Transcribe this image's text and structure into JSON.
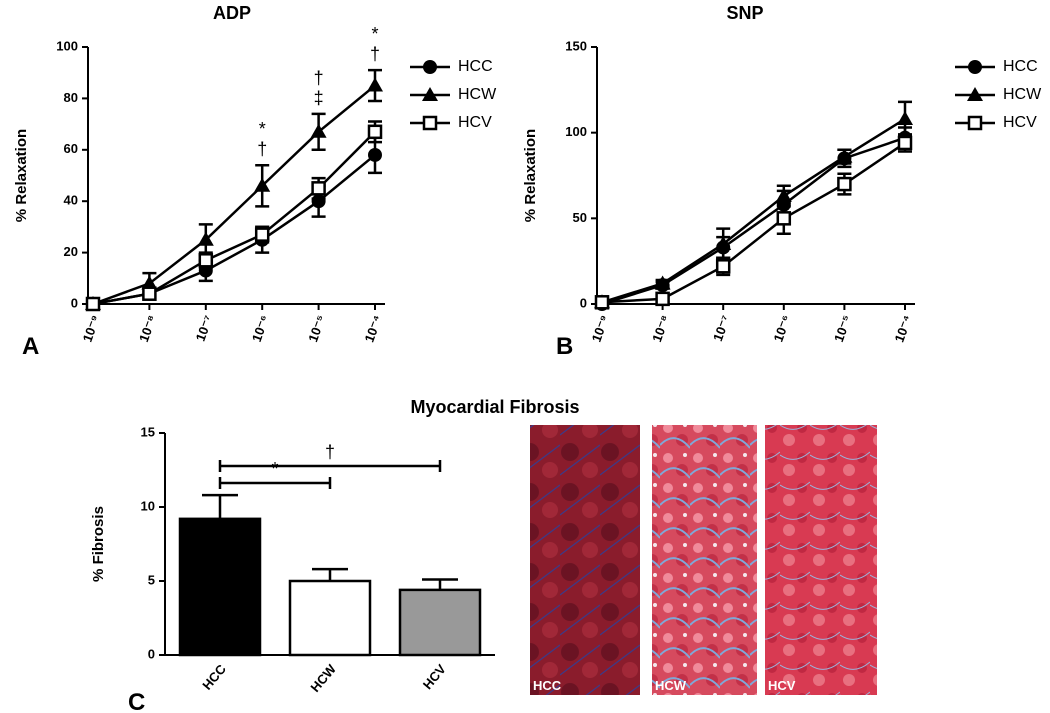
{
  "chart_data": [
    {
      "type": "line",
      "panel_label": "A",
      "title": "ADP",
      "y_label": "% Relaxation",
      "categories": [
        "10⁻⁹",
        "10⁻⁸",
        "10⁻⁷",
        "10⁻⁶",
        "10⁻⁵",
        "10⁻⁴"
      ],
      "ylim": [
        0,
        100
      ],
      "yticks": [
        0,
        20,
        40,
        60,
        80,
        100
      ],
      "legend": "right",
      "series": [
        {
          "name": "HCC",
          "marker": "circle",
          "color": "#000000",
          "values": [
            0,
            4,
            13,
            25,
            40,
            58
          ],
          "errors": [
            1,
            1,
            4,
            5,
            6,
            7
          ]
        },
        {
          "name": "HCW",
          "marker": "triangle",
          "color": "#000000",
          "values": [
            0,
            8,
            25,
            46,
            67,
            85
          ],
          "errors": [
            1,
            4,
            6,
            8,
            7,
            6
          ]
        },
        {
          "name": "HCV",
          "marker": "open-square",
          "color": "#000000",
          "values": [
            0,
            4,
            17,
            27,
            45,
            67
          ],
          "errors": [
            1,
            2,
            3,
            3,
            4,
            4
          ]
        }
      ],
      "annotations": [
        {
          "at": "10⁻⁶",
          "lines": [
            "*",
            "†"
          ]
        },
        {
          "at": "10⁻⁵",
          "lines": [
            "†",
            "‡"
          ]
        },
        {
          "at": "10⁻⁴",
          "lines": [
            "*",
            "†"
          ]
        }
      ]
    },
    {
      "type": "line",
      "panel_label": "B",
      "title": "SNP",
      "y_label": "% Relaxation",
      "categories": [
        "10⁻⁹",
        "10⁻⁸",
        "10⁻⁷",
        "10⁻⁶",
        "10⁻⁵",
        "10⁻⁴"
      ],
      "ylim": [
        0,
        150
      ],
      "yticks": [
        0,
        50,
        100,
        150
      ],
      "legend": "right",
      "series": [
        {
          "name": "HCC",
          "marker": "circle",
          "color": "#000000",
          "values": [
            0,
            11,
            33,
            58,
            85,
            97
          ],
          "errors": [
            1,
            2,
            6,
            8,
            5,
            6
          ]
        },
        {
          "name": "HCW",
          "marker": "triangle",
          "color": "#000000",
          "values": [
            1,
            12,
            35,
            63,
            86,
            108
          ],
          "errors": [
            1,
            2,
            9,
            6,
            4,
            10
          ]
        },
        {
          "name": "HCV",
          "marker": "open-square",
          "color": "#000000",
          "values": [
            1,
            3,
            22,
            50,
            70,
            94
          ],
          "errors": [
            1,
            2,
            5,
            9,
            6,
            5
          ]
        }
      ]
    },
    {
      "type": "bar",
      "panel_label": "C",
      "title": "Myocardial Fibrosis",
      "y_label": "% Fibrosis",
      "categories": [
        "HCC",
        "HCW",
        "HCV"
      ],
      "values": [
        9.2,
        5.0,
        4.4
      ],
      "errors": [
        1.6,
        0.8,
        0.7
      ],
      "colors": [
        "#000000",
        "#ffffff",
        "#999999"
      ],
      "ylim": [
        0,
        15
      ],
      "yticks": [
        0,
        5,
        10,
        15
      ],
      "comparisons": [
        {
          "from": "HCC",
          "to": "HCW",
          "label": "*"
        },
        {
          "from": "HCC",
          "to": "HCV",
          "label": "†"
        }
      ]
    }
  ],
  "images": [
    {
      "label": "HCC"
    },
    {
      "label": "HCW"
    },
    {
      "label": "HCV"
    }
  ]
}
